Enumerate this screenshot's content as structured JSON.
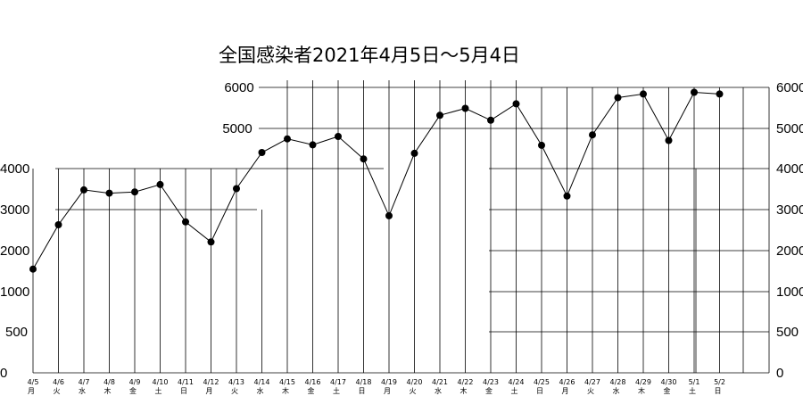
{
  "chart_data": {
    "type": "line",
    "title": "全国感染者2021年4月5日～5月4日",
    "xlabel": "",
    "ylabel": "",
    "ylim": [
      0,
      6000
    ],
    "y_ticks": [
      "0",
      "500",
      "1000",
      "2000",
      "3000",
      "4000",
      "5000",
      "6000"
    ],
    "y_ticks_right": [
      "0",
      "500",
      "1000",
      "2000",
      "3000",
      "4000",
      "5000",
      "6000"
    ],
    "grid": true,
    "categories": [
      {
        "date": "4/5",
        "dow": "月"
      },
      {
        "date": "4/6",
        "dow": "火"
      },
      {
        "date": "4/7",
        "dow": "水"
      },
      {
        "date": "4/8",
        "dow": "木"
      },
      {
        "date": "4/9",
        "dow": "金"
      },
      {
        "date": "4/10",
        "dow": "土"
      },
      {
        "date": "4/11",
        "dow": "日"
      },
      {
        "date": "4/12",
        "dow": "月"
      },
      {
        "date": "4/13",
        "dow": "火"
      },
      {
        "date": "4/14",
        "dow": "水"
      },
      {
        "date": "4/15",
        "dow": "木"
      },
      {
        "date": "4/16",
        "dow": "金"
      },
      {
        "date": "4/17",
        "dow": "土"
      },
      {
        "date": "4/18",
        "dow": "日"
      },
      {
        "date": "4/19",
        "dow": "月"
      },
      {
        "date": "4/20",
        "dow": "火"
      },
      {
        "date": "4/21",
        "dow": "水"
      },
      {
        "date": "4/22",
        "dow": "木"
      },
      {
        "date": "4/23",
        "dow": "金"
      },
      {
        "date": "4/24",
        "dow": "土"
      },
      {
        "date": "4/25",
        "dow": "日"
      },
      {
        "date": "4/26",
        "dow": "月"
      },
      {
        "date": "4/27",
        "dow": "火"
      },
      {
        "date": "4/28",
        "dow": "水"
      },
      {
        "date": "4/29",
        "dow": "木"
      },
      {
        "date": "4/30",
        "dow": "金"
      },
      {
        "date": "5/1",
        "dow": "土"
      },
      {
        "date": "5/2",
        "dow": "日"
      }
    ],
    "series": [
      {
        "values": [
          1550,
          2630,
          3480,
          3400,
          3430,
          3610,
          2700,
          2210,
          3510,
          4400,
          4740,
          4590,
          4800,
          4240,
          2850,
          4380,
          5320,
          5490,
          5200,
          5600,
          4580,
          3330,
          4840,
          5750,
          5840,
          4700,
          5880,
          5840
        ]
      }
    ]
  }
}
